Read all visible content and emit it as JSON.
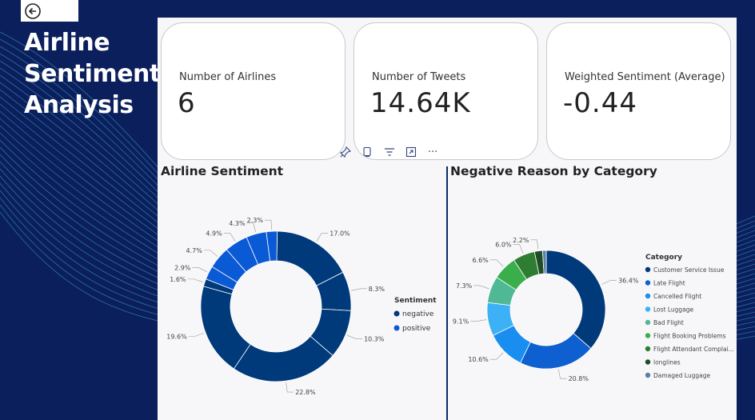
{
  "dashboard": {
    "title_lines": [
      "Airline",
      "Sentiment",
      "Analysis"
    ]
  },
  "kpis": [
    {
      "label": "Number of Airlines",
      "value": "6"
    },
    {
      "label": "Number of Tweets",
      "value": "14.64K"
    },
    {
      "label": "Weighted Sentiment (Average)",
      "value": "-0.44"
    }
  ],
  "toolbar": {
    "icons": [
      "pin-icon",
      "copy-icon",
      "filter-icon",
      "focus-mode-icon",
      "more-options-icon"
    ],
    "more_glyph": "···"
  },
  "chart_data": [
    {
      "type": "pie",
      "variant": "donut",
      "title": "Airline Sentiment",
      "legend_title": "Sentiment",
      "legend_position": "right",
      "legend": [
        "negative",
        "positive"
      ],
      "slices": [
        {
          "label": "17.0%",
          "value": 17.0,
          "color": "#003a7a"
        },
        {
          "label": "8.3%",
          "value": 8.3,
          "color": "#003a7a"
        },
        {
          "label": "10.3%",
          "value": 10.3,
          "color": "#003a7a"
        },
        {
          "label": "22.8%",
          "value": 22.8,
          "color": "#003a7a"
        },
        {
          "label": "19.6%",
          "value": 19.6,
          "color": "#003a7a"
        },
        {
          "label": "1.6%",
          "value": 1.6,
          "color": "#003a7a"
        },
        {
          "label": "2.9%",
          "value": 2.9,
          "color": "#0a5ad6"
        },
        {
          "label": "4.7%",
          "value": 4.7,
          "color": "#0a5ad6"
        },
        {
          "label": "4.9%",
          "value": 4.9,
          "color": "#0a5ad6"
        },
        {
          "label": "4.3%",
          "value": 4.3,
          "color": "#0a5ad6"
        },
        {
          "label": "2.3%",
          "value": 2.3,
          "color": "#0a5ad6"
        }
      ],
      "colors": {
        "negative": "#003a7a",
        "positive": "#0a5ad6"
      }
    },
    {
      "type": "pie",
      "variant": "donut",
      "title": "Negative Reason by Category",
      "legend_title": "Category",
      "legend_position": "right",
      "legend": [
        "Customer Service Issue",
        "Late Flight",
        "Cancelled Flight",
        "Lost Luggage",
        "Bad Flight",
        "Flight Booking Problems",
        "Flight Attendant Complai...",
        "longlines",
        "Damaged Luggage"
      ],
      "slices": [
        {
          "label": "36.4%",
          "value": 36.4,
          "color": "#003a7a"
        },
        {
          "label": "20.8%",
          "value": 20.8,
          "color": "#0e5fcf"
        },
        {
          "label": "10.6%",
          "value": 10.6,
          "color": "#1a8ef0"
        },
        {
          "label": "9.1%",
          "value": 9.1,
          "color": "#3db1f5"
        },
        {
          "label": "7.3%",
          "value": 7.3,
          "color": "#4fb895"
        },
        {
          "label": "6.6%",
          "value": 6.6,
          "color": "#3aae4a"
        },
        {
          "label": "6.0%",
          "value": 6.0,
          "color": "#2e7d32"
        },
        {
          "label": "2.2%",
          "value": 2.2,
          "color": "#1f4d24"
        },
        {
          "label": "",
          "value": 1.0,
          "color": "#5a7fa8"
        }
      ]
    }
  ]
}
